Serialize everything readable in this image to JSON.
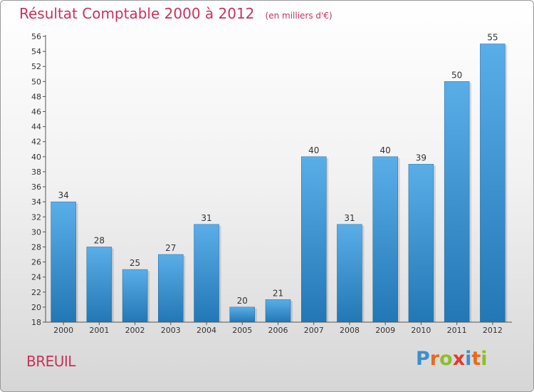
{
  "header": {
    "title": "Résultat Comptable 2000 à 2012",
    "subtitle": "(en milliers d'€)"
  },
  "footer": {
    "commune": "BREUIL",
    "logo_letters": [
      "P",
      "r",
      "o",
      "x",
      "i",
      "t",
      "i"
    ],
    "logo_colors": [
      "#3b8fd0",
      "#e96a1e",
      "#8bbf2a",
      "#e33b2e",
      "#3b8fd0",
      "#e96a1e",
      "#8bbf2a"
    ]
  },
  "colors": {
    "bar_top": "#5aaee8",
    "bar_bottom": "#2277b5",
    "title": "#c8325a",
    "axis": "#555555",
    "grid": "#bbbbbb"
  },
  "chart_data": {
    "type": "bar",
    "title": "Résultat Comptable 2000 à 2012",
    "subtitle": "(en milliers d'€)",
    "xlabel": "",
    "ylabel": "",
    "categories": [
      "2000",
      "2001",
      "2002",
      "2003",
      "2004",
      "2005",
      "2006",
      "2007",
      "2008",
      "2009",
      "2010",
      "2011",
      "2012"
    ],
    "values": [
      34,
      28,
      25,
      27,
      31,
      20,
      21,
      40,
      31,
      40,
      39,
      50,
      55
    ],
    "ylim": [
      18,
      56
    ],
    "ytick_step": 2,
    "yticks": [
      "18",
      "20",
      "22",
      "24",
      "26",
      "28",
      "30",
      "32",
      "34",
      "36",
      "38",
      "40",
      "42",
      "44",
      "46",
      "48",
      "50",
      "52",
      "54",
      "56"
    ],
    "grid": false
  }
}
